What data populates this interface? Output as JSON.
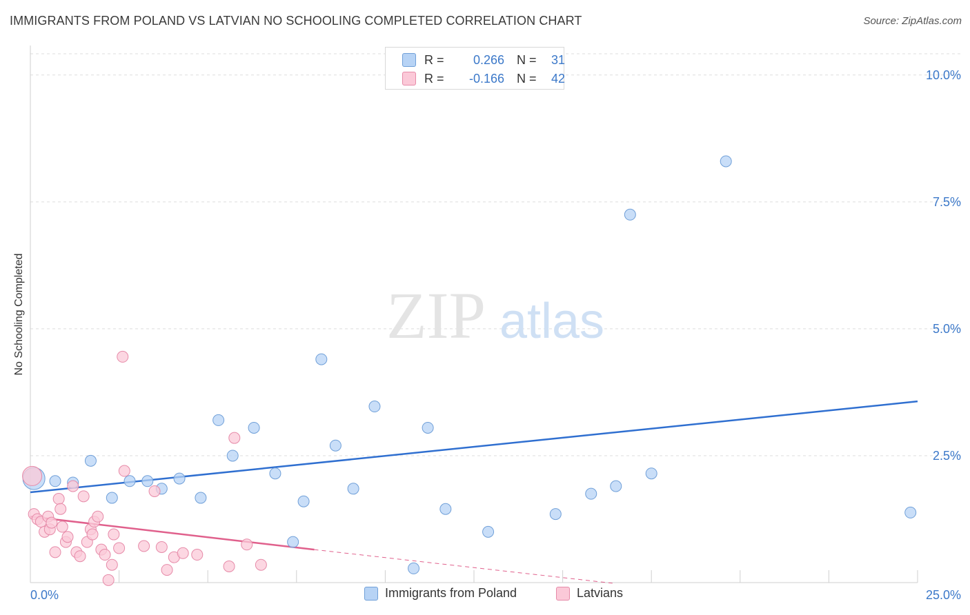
{
  "header": {
    "title": "IMMIGRANTS FROM POLAND VS LATVIAN NO SCHOOLING COMPLETED CORRELATION CHART",
    "source": "Source: ZipAtlas.com"
  },
  "watermark": {
    "zip": "ZIP",
    "atlas": "atlas"
  },
  "stats": [
    {
      "r_label": "R =",
      "r_value": "0.266",
      "n_label": "N =",
      "n_value": "31",
      "color": "#b7d3f5",
      "border": "#6f9fd8"
    },
    {
      "r_label": "R =",
      "r_value": "-0.166",
      "n_label": "N =",
      "n_value": "42",
      "color": "#fbc9d8",
      "border": "#e68aa8"
    }
  ],
  "colors": {
    "poland_fill": "#b7d3f5",
    "poland_stroke": "#6f9fd8",
    "poland_line": "#2f6fd0",
    "latvian_fill": "#fbc9d8",
    "latvian_stroke": "#e68aa8",
    "latvian_line": "#e0608c",
    "tick_label": "#3b78c9",
    "grid": "#dddddd"
  },
  "chart_data": {
    "type": "scatter",
    "title": "IMMIGRANTS FROM POLAND VS LATVIAN NO SCHOOLING COMPLETED CORRELATION CHART",
    "xlabel": "",
    "ylabel": "No Schooling Completed",
    "xlim": [
      0,
      25
    ],
    "ylim": [
      0,
      10.5
    ],
    "x_tick_labels": [
      "0.0%",
      "25.0%"
    ],
    "y_ticks": [
      2.5,
      5.0,
      7.5,
      10.0
    ],
    "y_tick_labels": [
      "2.5%",
      "5.0%",
      "7.5%",
      "10.0%"
    ],
    "grid": true,
    "legend_position": "bottom",
    "series": [
      {
        "name": "Immigrants from Poland",
        "points": [
          [
            0.1,
            2.05
          ],
          [
            0.7,
            2.0
          ],
          [
            1.2,
            1.97
          ],
          [
            1.7,
            2.4
          ],
          [
            2.3,
            1.67
          ],
          [
            2.8,
            2.0
          ],
          [
            3.3,
            2.0
          ],
          [
            3.7,
            1.85
          ],
          [
            4.2,
            2.05
          ],
          [
            4.8,
            1.67
          ],
          [
            5.3,
            3.2
          ],
          [
            5.7,
            2.5
          ],
          [
            6.3,
            3.05
          ],
          [
            6.9,
            2.15
          ],
          [
            7.4,
            0.8
          ],
          [
            7.7,
            1.6
          ],
          [
            8.2,
            4.4
          ],
          [
            8.6,
            2.7
          ],
          [
            9.1,
            1.85
          ],
          [
            9.7,
            3.47
          ],
          [
            10.8,
            0.28
          ],
          [
            11.2,
            3.05
          ],
          [
            11.7,
            1.45
          ],
          [
            12.9,
            1.0
          ],
          [
            14.8,
            1.35
          ],
          [
            15.8,
            1.75
          ],
          [
            16.5,
            1.9
          ],
          [
            16.9,
            7.25
          ],
          [
            17.5,
            2.15
          ],
          [
            19.6,
            8.3
          ],
          [
            24.8,
            1.38
          ]
        ],
        "trend": {
          "x": [
            0,
            25
          ],
          "y": [
            1.78,
            3.57
          ]
        }
      },
      {
        "name": "Latvians",
        "points": [
          [
            0.05,
            2.1
          ],
          [
            0.1,
            1.35
          ],
          [
            0.2,
            1.25
          ],
          [
            0.3,
            1.2
          ],
          [
            0.4,
            1.0
          ],
          [
            0.5,
            1.3
          ],
          [
            0.55,
            1.05
          ],
          [
            0.6,
            1.18
          ],
          [
            0.7,
            0.6
          ],
          [
            0.8,
            1.65
          ],
          [
            0.85,
            1.45
          ],
          [
            0.9,
            1.1
          ],
          [
            1.0,
            0.8
          ],
          [
            1.05,
            0.9
          ],
          [
            1.2,
            1.9
          ],
          [
            1.3,
            0.6
          ],
          [
            1.4,
            0.52
          ],
          [
            1.5,
            1.7
          ],
          [
            1.6,
            0.8
          ],
          [
            1.7,
            1.05
          ],
          [
            1.75,
            0.95
          ],
          [
            1.8,
            1.2
          ],
          [
            1.9,
            1.3
          ],
          [
            2.0,
            0.65
          ],
          [
            2.1,
            0.55
          ],
          [
            2.2,
            0.05
          ],
          [
            2.3,
            0.35
          ],
          [
            2.35,
            0.95
          ],
          [
            2.5,
            0.68
          ],
          [
            2.6,
            4.45
          ],
          [
            2.65,
            2.2
          ],
          [
            3.2,
            0.72
          ],
          [
            3.5,
            1.8
          ],
          [
            3.7,
            0.7
          ],
          [
            3.85,
            0.25
          ],
          [
            4.05,
            0.5
          ],
          [
            4.3,
            0.58
          ],
          [
            4.7,
            0.55
          ],
          [
            5.6,
            0.32
          ],
          [
            5.75,
            2.85
          ],
          [
            6.1,
            0.75
          ],
          [
            6.5,
            0.35
          ]
        ],
        "trend": {
          "x": [
            0,
            8
          ],
          "y": [
            1.3,
            0.65
          ]
        },
        "trend_extension": {
          "x": [
            8,
            16.5
          ],
          "y": [
            0.65,
            -0.02
          ]
        }
      }
    ]
  },
  "legend": {
    "items": [
      {
        "label": "Immigrants from Poland",
        "fill": "#b7d3f5",
        "stroke": "#6f9fd8"
      },
      {
        "label": "Latvians",
        "fill": "#fbc9d8",
        "stroke": "#e68aa8"
      }
    ]
  }
}
